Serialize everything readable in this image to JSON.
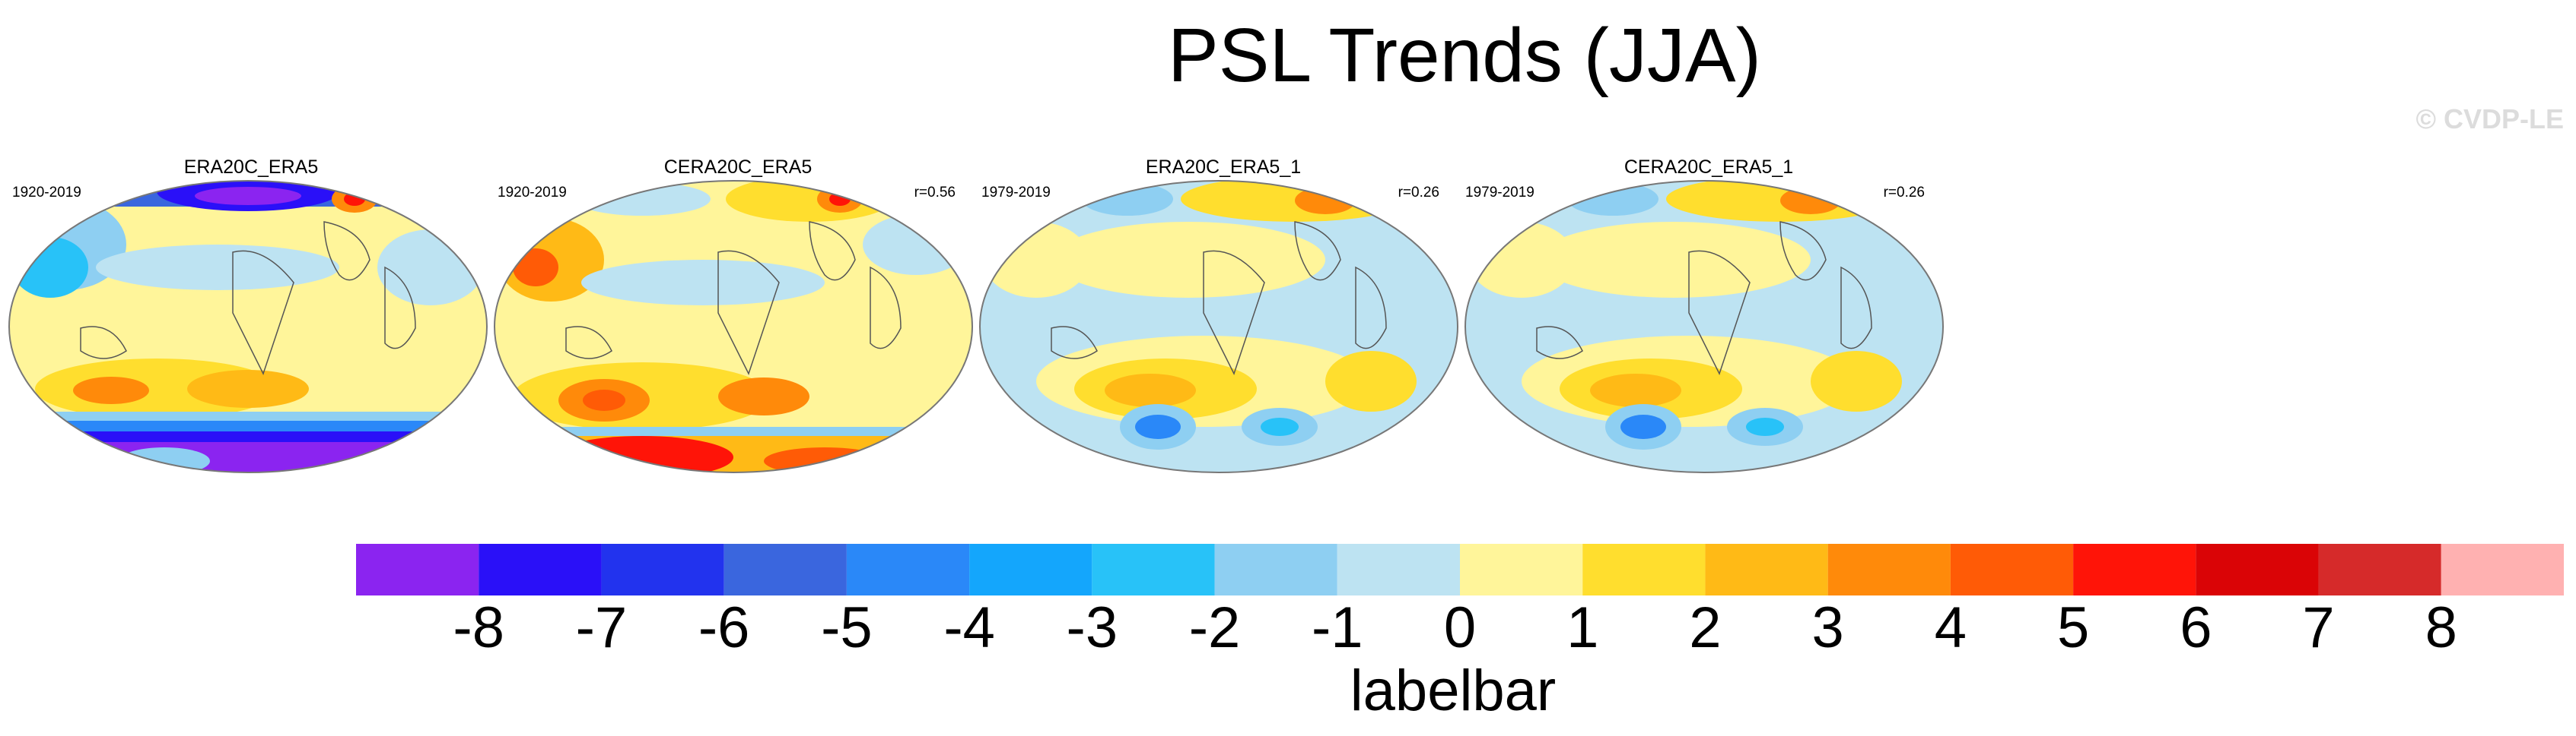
{
  "title": "PSL Trends (JJA)",
  "credit": "© CVDP-LE",
  "panels": [
    {
      "title": "ERA20C_ERA5",
      "period": "1920-2019",
      "corr": ""
    },
    {
      "title": "CERA20C_ERA5",
      "period": "1920-2019",
      "corr": "r=0.56"
    },
    {
      "title": "ERA20C_ERA5_1",
      "period": "1979-2019",
      "corr": "r=0.26"
    },
    {
      "title": "CERA20C_ERA5_1",
      "period": "1979-2019",
      "corr": "r=0.26"
    }
  ],
  "labelbar": {
    "title": "labelbar",
    "ticks": [
      "-8",
      "-7",
      "-6",
      "-5",
      "-4",
      "-3",
      "-2",
      "-1",
      "0",
      "1",
      "2",
      "3",
      "4",
      "5",
      "6",
      "7",
      "8"
    ],
    "colors": [
      "#8b24f0",
      "#2a10f8",
      "#2233ee",
      "#3a66de",
      "#2a88f8",
      "#14a6fc",
      "#28c2f8",
      "#8ecff2",
      "#bde3f2",
      "#fff59a",
      "#ffde2e",
      "#ffba16",
      "#ff8a0a",
      "#ff5b06",
      "#ff1408",
      "#da0406",
      "#d62a2a",
      "#ffb1b1"
    ]
  }
}
